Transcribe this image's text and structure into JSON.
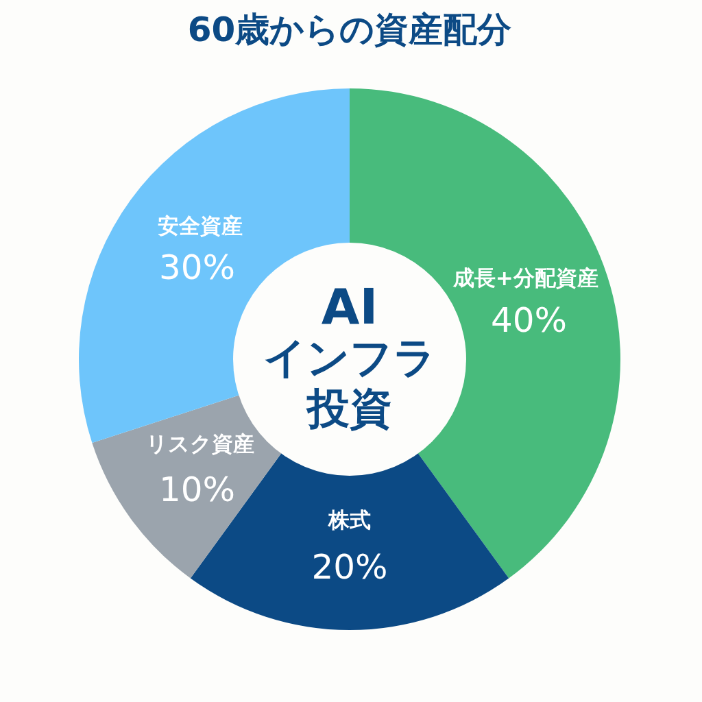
{
  "chart_data": {
    "type": "donut",
    "title": "60歳からの資産配分",
    "categories": [
      "成長+分配資産",
      "株式",
      "リスク資産",
      "安全資産"
    ],
    "values": [
      40,
      20,
      10,
      30
    ],
    "colors": [
      "#48bb7c",
      "#0c4a85",
      "#9ba4ad",
      "#6ec5fb"
    ],
    "value_labels": [
      "40%",
      "20%",
      "10%",
      "30%"
    ],
    "annotations": [
      "AI",
      "インフラ",
      "投資"
    ],
    "legend": false
  }
}
